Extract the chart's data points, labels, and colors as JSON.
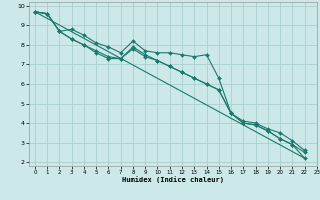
{
  "xlabel": "Humidex (Indice chaleur)",
  "ylabel": "",
  "xlim": [
    -0.5,
    23
  ],
  "ylim": [
    1.8,
    10.2
  ],
  "xticks": [
    0,
    1,
    2,
    3,
    4,
    5,
    6,
    7,
    8,
    9,
    10,
    11,
    12,
    13,
    14,
    15,
    16,
    17,
    18,
    19,
    20,
    21,
    22,
    23
  ],
  "yticks": [
    2,
    3,
    4,
    5,
    6,
    7,
    8,
    9,
    10
  ],
  "bg_color": "#cce8e8",
  "grid_color": "#aacfcf",
  "line_color": "#1a7a6e",
  "series": [
    {
      "x": [
        0,
        1,
        2,
        3,
        4,
        5,
        6,
        7,
        8,
        9,
        10,
        11,
        12,
        13,
        14,
        15,
        16,
        17,
        18,
        19,
        20,
        21,
        22
      ],
      "y": [
        9.7,
        9.6,
        8.7,
        8.8,
        8.5,
        8.1,
        7.9,
        7.6,
        8.2,
        7.7,
        7.6,
        7.6,
        7.5,
        7.4,
        7.5,
        6.3,
        4.5,
        4.1,
        4.0,
        3.7,
        3.5,
        3.1,
        2.6
      ],
      "markers": true
    },
    {
      "x": [
        0,
        1,
        2,
        3,
        4,
        5,
        6,
        7,
        8,
        9,
        10,
        11,
        12,
        13,
        14,
        15,
        16,
        17,
        18,
        19,
        20,
        21,
        22
      ],
      "y": [
        9.7,
        9.6,
        8.7,
        8.3,
        8.0,
        7.7,
        7.4,
        7.3,
        7.9,
        7.5,
        7.2,
        6.9,
        6.6,
        6.3,
        6.0,
        5.7,
        4.5,
        4.0,
        3.9,
        3.6,
        3.2,
        2.9,
        2.5
      ],
      "markers": true
    },
    {
      "x": [
        0,
        1,
        2,
        3,
        4,
        5,
        6,
        7,
        8,
        9,
        10,
        11,
        12,
        13,
        14,
        15,
        16,
        17,
        18,
        19,
        20,
        21,
        22
      ],
      "y": [
        9.7,
        9.6,
        8.7,
        8.3,
        8.0,
        7.6,
        7.3,
        7.3,
        7.8,
        7.4,
        7.2,
        6.9,
        6.6,
        6.3,
        6.0,
        5.7,
        4.5,
        4.0,
        3.9,
        3.6,
        3.2,
        2.9,
        2.2
      ],
      "markers": true
    },
    {
      "x": [
        0,
        22
      ],
      "y": [
        9.7,
        2.2
      ],
      "markers": false
    }
  ]
}
